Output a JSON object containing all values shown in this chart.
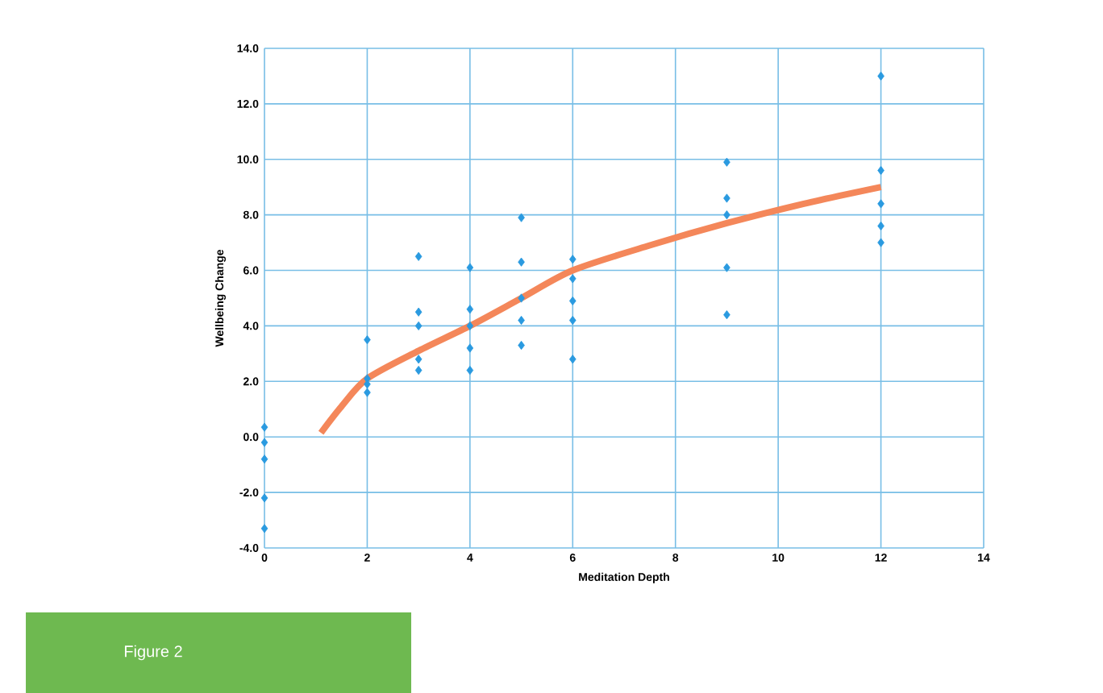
{
  "chart_data": {
    "type": "scatter",
    "xlabel": "Meditation Depth",
    "ylabel": "Wellbeing Change",
    "annotations": [
      "Figure 2"
    ],
    "xlim": [
      0,
      14
    ],
    "ylim": [
      -4,
      14
    ],
    "xticks": [
      {
        "value": 0,
        "label": "0"
      },
      {
        "value": 2,
        "label": "2"
      },
      {
        "value": 4,
        "label": "4"
      },
      {
        "value": 6,
        "label": "6"
      },
      {
        "value": 8,
        "label": "8"
      },
      {
        "value": 10,
        "label": "10"
      },
      {
        "value": 12,
        "label": "12"
      },
      {
        "value": 14,
        "label": "14"
      }
    ],
    "yticks": [
      {
        "value": -4,
        "label": "-4.0"
      },
      {
        "value": -2,
        "label": "-2.0"
      },
      {
        "value": 0,
        "label": "0.0"
      },
      {
        "value": 2,
        "label": "2.0"
      },
      {
        "value": 4,
        "label": "4.0"
      },
      {
        "value": 6,
        "label": "6.0"
      },
      {
        "value": 8,
        "label": "8.0"
      },
      {
        "value": 10,
        "label": "10.0"
      },
      {
        "value": 12,
        "label": "12.0"
      },
      {
        "value": 14,
        "label": "14.0"
      }
    ],
    "grid": true,
    "series": [
      {
        "marker": "diamond",
        "color": "#2a9ae0",
        "x": [
          0,
          0,
          0,
          0,
          0,
          2,
          2,
          2,
          2,
          3,
          3,
          3,
          3,
          3,
          4,
          4,
          4,
          4,
          4,
          5,
          5,
          5,
          5,
          5,
          6,
          6,
          6,
          6,
          6,
          9,
          9,
          9,
          9,
          9,
          12,
          12,
          12,
          12,
          12
        ],
        "values": [
          0.35,
          -0.2,
          -0.8,
          -2.2,
          -3.3,
          3.5,
          2.1,
          1.9,
          1.6,
          6.5,
          4.5,
          4.0,
          2.8,
          2.4,
          6.1,
          4.6,
          4.0,
          3.2,
          2.4,
          7.9,
          6.3,
          5.0,
          4.2,
          3.3,
          6.4,
          5.7,
          4.9,
          4.2,
          2.8,
          9.9,
          8.6,
          8.0,
          6.1,
          4.4,
          13.0,
          9.6,
          8.4,
          7.6,
          7.0
        ]
      },
      {
        "type": "line",
        "color": "#f4875a",
        "x": [
          1.1,
          1.5,
          2,
          3,
          4,
          5,
          6,
          7.5,
          9,
          10.5,
          12
        ],
        "values": [
          0.15,
          1.1,
          2.1,
          3.1,
          4.0,
          5.0,
          6.0,
          6.9,
          7.7,
          8.4,
          9.0
        ]
      }
    ]
  }
}
